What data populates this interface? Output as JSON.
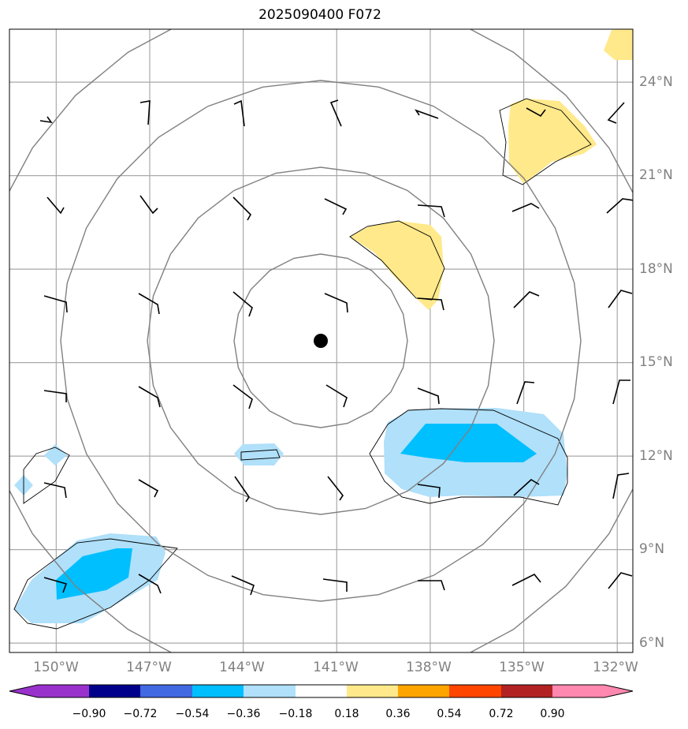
{
  "title": "2025090400 F072",
  "map": {
    "lon_labels": [
      "150°W",
      "147°W",
      "144°W",
      "141°W",
      "138°W",
      "135°W",
      "132°W"
    ],
    "lat_labels": [
      "6°N",
      "9°N",
      "12°N",
      "15°N",
      "18°N",
      "21°N",
      "24°N"
    ],
    "lon_values": [
      -150,
      -147,
      -144,
      -141,
      -138,
      -135,
      -132
    ],
    "lat_values": [
      6,
      9,
      12,
      15,
      18,
      21,
      24
    ],
    "lon_range": [
      -151.5,
      -131.5
    ],
    "lat_range": [
      5.7,
      25.7
    ],
    "center": {
      "lon": -141.45,
      "lat": 15.65
    },
    "range_ring_count": 4,
    "grid": true
  },
  "colorbar": {
    "tick_labels": [
      "−0.90",
      "−0.72",
      "−0.54",
      "−0.36",
      "−0.18",
      "0.18",
      "0.36",
      "0.54",
      "0.72",
      "0.90"
    ],
    "colors": [
      "#9932cc",
      "#00008b",
      "#4169e1",
      "#00bfff",
      "#b0e0fa",
      "#ffffff",
      "#ffe98a",
      "#ffa500",
      "#ff4500",
      "#b22222",
      "#ff88b0"
    ]
  },
  "colors": {
    "grid": "#a9a9a9",
    "ring": "#808080",
    "light_blue": "#b0e0fa",
    "blue": "#00bfff",
    "yellow": "#ffe98a"
  }
}
